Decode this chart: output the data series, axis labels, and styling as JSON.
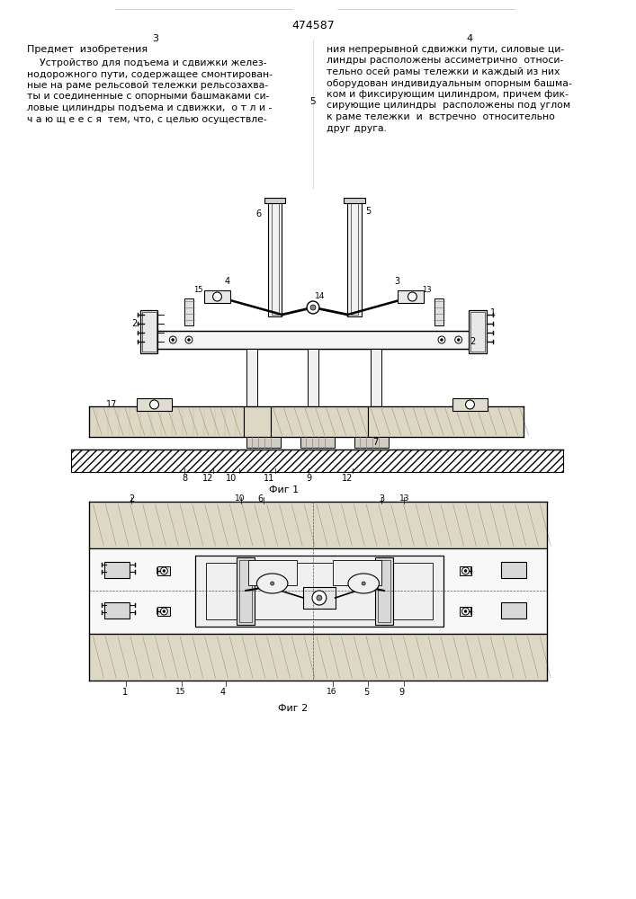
{
  "title": "474587",
  "page_left": "3",
  "page_right": "4",
  "section_title": "Предмет  изобретения",
  "text_left": "    Устройство для подъема и сдвижки желез-\nнодорожного пути, содержащее смонтирован-\nные на раме рельсовой тележки рельсозахва-\nты и соединенные с опорными башмаками си-\nловые цилиндры подъема и сдвижки,  о т л и -\nч а ю щ е е с я  тем, что, с целью осуществле-",
  "text_right": "ния непрерывной сдвижки пути, силовые ци-\nлиндры расположены ассиметрично  относи-\nтельно осей рамы тележки и каждый из них\nоборудован индивидуальным опорным башма-\nком и фиксирующим цилиндром, причем фик-\nсирующие цилиндры  расположены под углом\nк раме тележки  и  встречно  относительно\nдруг друга.",
  "fig1_label": "Фиг 1",
  "fig2_label": "Фиг 2",
  "bg_color": "#ffffff",
  "line_color": "#000000"
}
